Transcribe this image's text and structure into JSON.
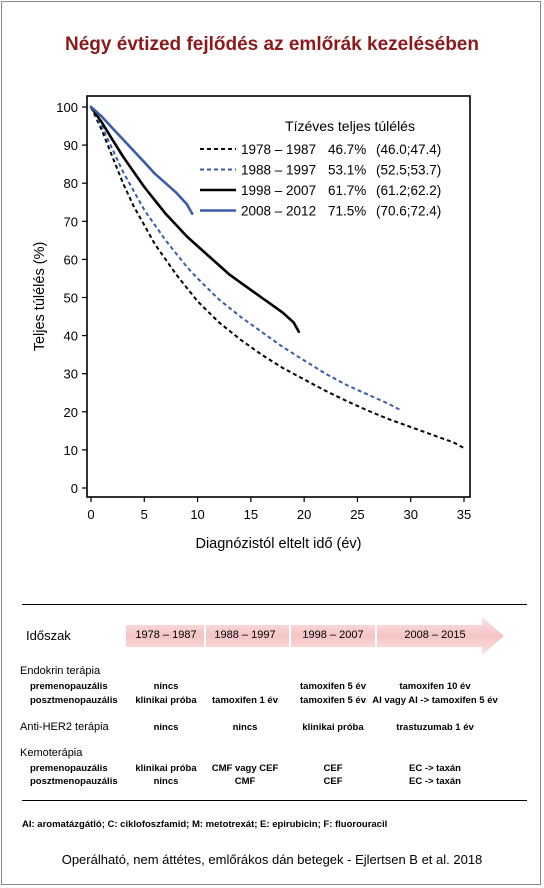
{
  "title": "Négy évtized fejlődés az emlőrák kezelésében",
  "chart_data": {
    "type": "line",
    "xlabel": "Diagnózistól eltelt idő (év)",
    "ylabel": "Teljes túlélés (%)",
    "xlim": [
      0,
      35
    ],
    "ylim": [
      0,
      100
    ],
    "xticks": [
      0,
      5,
      10,
      15,
      20,
      25,
      30,
      35
    ],
    "yticks": [
      0,
      10,
      20,
      30,
      40,
      50,
      60,
      70,
      80,
      90,
      100
    ],
    "grid": false,
    "legend_title": "Tízéves teljes túlélés",
    "legend_position": "top-right",
    "series": [
      {
        "name": "1978 – 1987",
        "pct": "46.7%",
        "ci": "(46.0;47.4)",
        "color": "#000000",
        "dashed": true,
        "x": [
          0,
          1,
          2,
          3,
          4,
          5,
          6,
          7,
          8,
          9,
          10,
          12,
          14,
          16,
          18,
          20,
          22,
          24,
          26,
          28,
          30,
          32,
          34,
          35
        ],
        "y": [
          100,
          94,
          87,
          80,
          74,
          69,
          64,
          60,
          56,
          52.5,
          49,
          43.5,
          39,
          35,
          31.5,
          28.5,
          25.5,
          22.8,
          20.3,
          18,
          16,
          14,
          12,
          10.5
        ]
      },
      {
        "name": "1988 – 1997",
        "pct": "53.1%",
        "ci": "(52.5;53.7)",
        "color": "#3b5aa8",
        "dashed": true,
        "x": [
          0,
          1,
          2,
          3,
          4,
          5,
          6,
          7,
          8,
          9,
          10,
          12,
          14,
          16,
          18,
          20,
          22,
          24,
          26,
          28,
          29
        ],
        "y": [
          100,
          95,
          89,
          83,
          78,
          73,
          69,
          65,
          61.5,
          58,
          55,
          49.5,
          45,
          41,
          37,
          33.5,
          30,
          27,
          24.5,
          22,
          20.5
        ]
      },
      {
        "name": "1998 – 2007",
        "pct": "61.7%",
        "ci": "(61.2;62.2)",
        "color": "#000000",
        "dashed": false,
        "x": [
          0,
          1,
          2,
          3,
          4,
          5,
          6,
          7,
          8,
          9,
          10,
          11,
          12,
          13,
          14,
          15,
          16,
          17,
          18,
          19,
          19.5
        ],
        "y": [
          100,
          96,
          91.5,
          87,
          83,
          79,
          75.5,
          72,
          69,
          66,
          63.5,
          61,
          58.5,
          56,
          54,
          52,
          50,
          48,
          46,
          43.5,
          41
        ]
      },
      {
        "name": "2008 – 2012",
        "pct": "71.5%",
        "ci": "(70.6;72.4)",
        "color": "#3b5aa8",
        "dashed": false,
        "x": [
          0,
          1,
          2,
          3,
          4,
          5,
          6,
          7,
          8,
          9,
          9.5
        ],
        "y": [
          100,
          97.5,
          94.5,
          91.5,
          88.5,
          85.5,
          82.5,
          80,
          77.5,
          74.5,
          72
        ]
      }
    ]
  },
  "table": {
    "period_label": "Időszak",
    "periods": [
      "1978 – 1987",
      "1988 – 1997",
      "1998 – 2007",
      "2008 – 2015"
    ],
    "rows": [
      {
        "section": "Endokrin terápia"
      },
      {
        "label": "premenopauzális",
        "cells": [
          "nincs",
          "",
          "tamoxifen 5 év",
          "tamoxifen 10 év"
        ]
      },
      {
        "label": "posztmenopauzális",
        "cells": [
          "klinikai próba",
          "tamoxifen 1 év",
          "tamoxifen 5 év",
          "AI vagy AI -> tamoxifen 5 év"
        ]
      },
      {
        "section": "Anti-HER2 terápia",
        "cells": [
          "nincs",
          "nincs",
          "klinikai próba",
          "trastuzumab 1 év"
        ]
      },
      {
        "section": "Kemoterápia"
      },
      {
        "label": "premenopauzális",
        "cells": [
          "klinikai próba",
          "CMF vagy CEF",
          "CEF",
          "EC -> taxán"
        ]
      },
      {
        "label": "posztmenopauzális",
        "cells": [
          "nincs",
          "CMF",
          "CEF",
          "EC -> taxán"
        ]
      }
    ]
  },
  "abbreviations": "AI: aromatázgátló;  C: ciklofoszfamid;  M: metotrexát;  E: epirubicin;  F: fluorouracil",
  "source": "Operálható, nem áttétes, emlőrákos dán betegek - Ejlertsen B et al. 2018"
}
